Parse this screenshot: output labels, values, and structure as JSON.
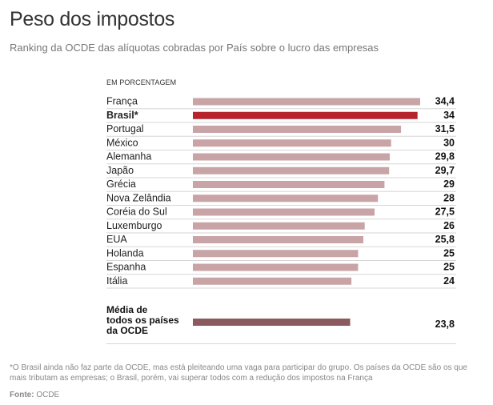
{
  "title": "Peso dos impostos",
  "subtitle": "Ranking da OCDE das alíquotas cobradas por País sobre o lucro das empresas",
  "unit_label": "EM PORCENTAGEM",
  "colors": {
    "bar": "#c8a4a6",
    "highlight": "#b5252b",
    "average": "#8a5a5e"
  },
  "chart_data": {
    "type": "bar",
    "orientation": "horizontal",
    "categories": [
      "França",
      "Brasil*",
      "Portugal",
      "México",
      "Alemanha",
      "Japão",
      "Grécia",
      "Nova Zelândia",
      "Coréia do Sul",
      "Luxemburgo",
      "EUA",
      "Holanda",
      "Espanha",
      "Itália"
    ],
    "values": [
      34.4,
      34,
      31.5,
      30,
      29.8,
      29.7,
      29,
      28,
      27.5,
      26,
      25.8,
      25,
      25,
      24
    ],
    "value_labels": [
      "34,4",
      "34",
      "31,5",
      "30",
      "29,8",
      "29,7",
      "29",
      "28",
      "27,5",
      "26",
      "25,8",
      "25",
      "25",
      "24"
    ],
    "highlight": "Brasil*",
    "average": {
      "label": "Média de todos os países da OCDE",
      "value": 23.8,
      "value_label": "23,8"
    },
    "xlim": [
      0,
      34.4
    ],
    "grid": false,
    "legend": "none"
  },
  "footnote": "*O Brasil ainda não faz parte da OCDE, mas está pleiteando uma vaga para participar do grupo. Os países da OCDE são os que mais tributam as empresas; o Brasil, porém, vai superar todos com a redução dos impostos na França",
  "source": {
    "label": "Fonte:",
    "value": "OCDE"
  }
}
